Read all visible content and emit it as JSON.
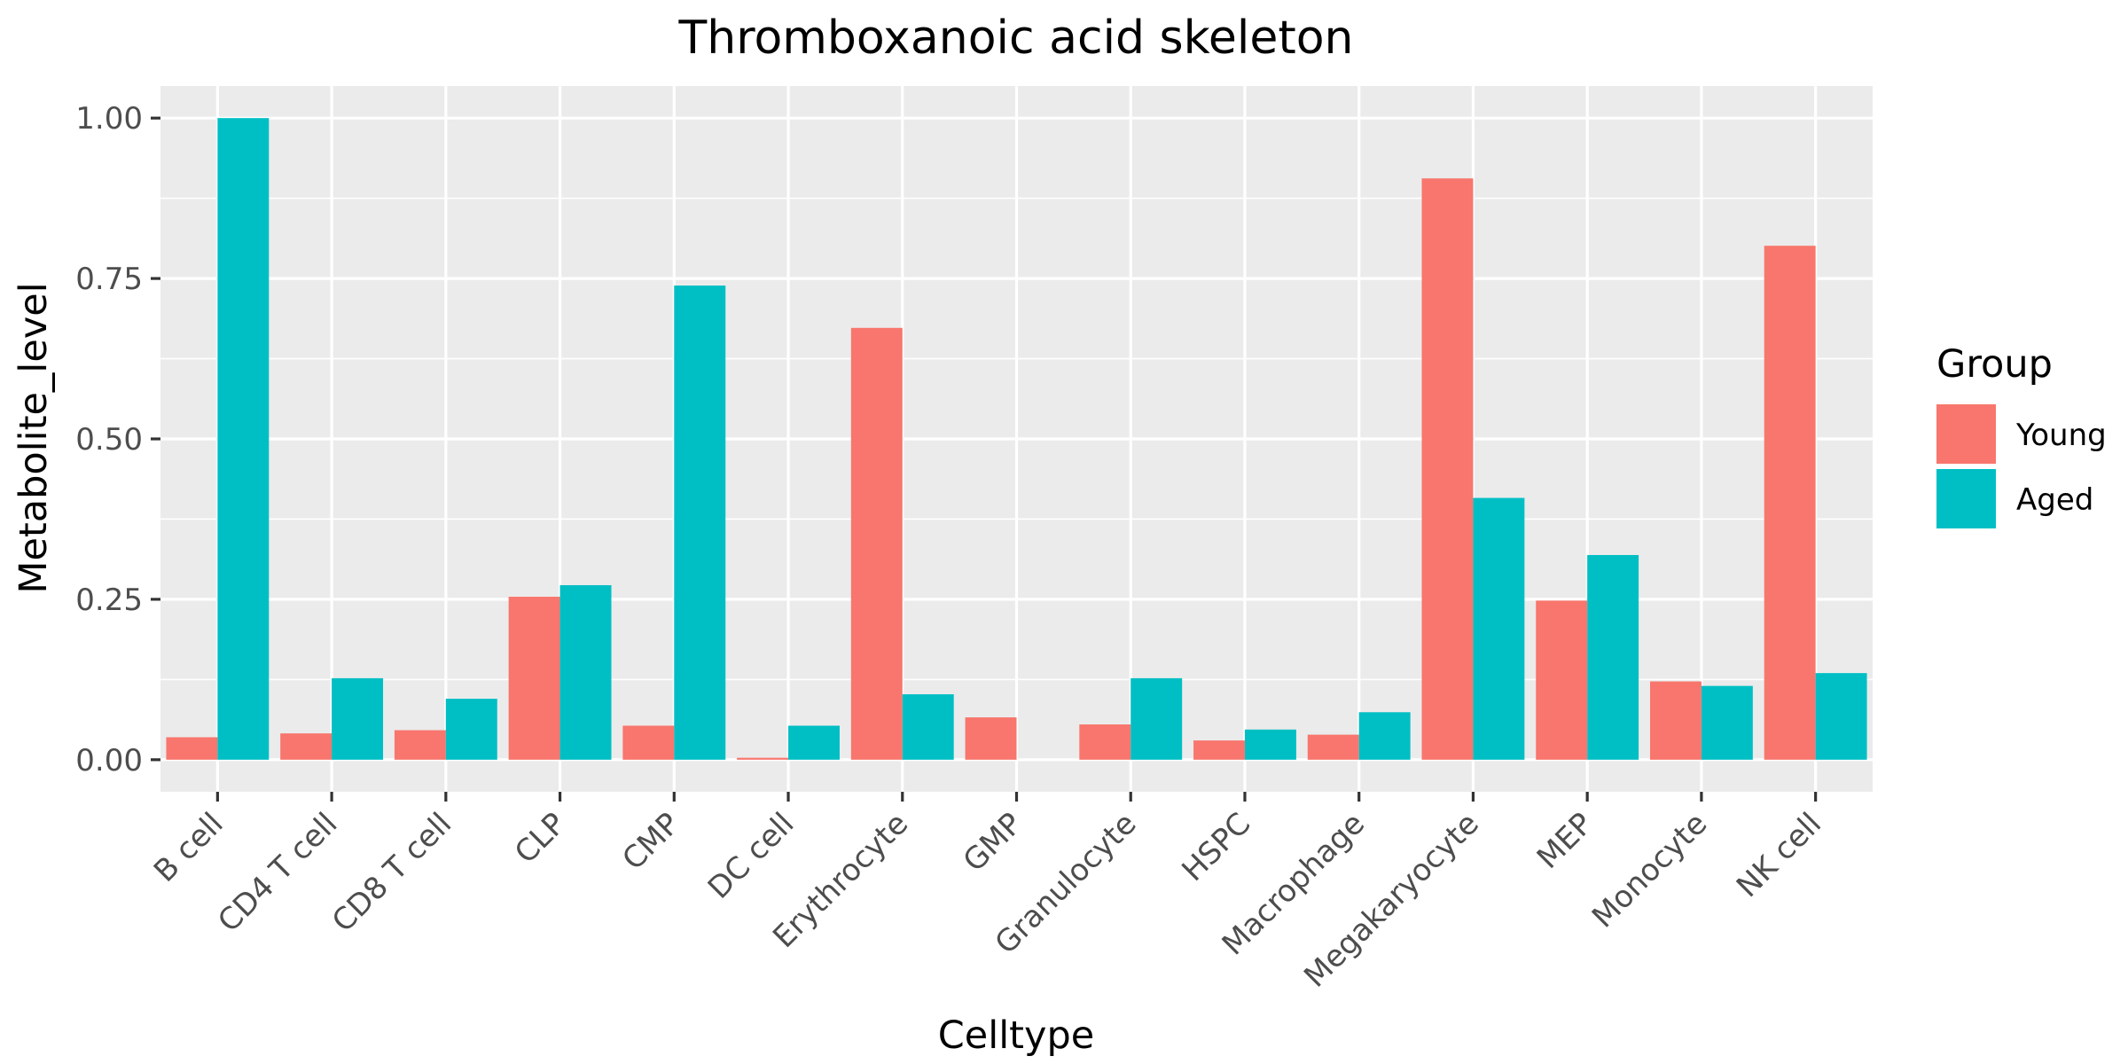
{
  "chart_data": {
    "type": "bar",
    "title": "Thromboxanoic acid skeleton",
    "xlabel": "Celltype",
    "ylabel": "Metabolite_level",
    "ylim": [
      -0.05,
      1.05
    ],
    "yticks": [
      0,
      0.25,
      0.5,
      0.75,
      1.0
    ],
    "ytick_labels": [
      "0.00",
      "0.25",
      "0.50",
      "0.75",
      "1.00"
    ],
    "grid": true,
    "legend": {
      "title": "Group",
      "position": "right"
    },
    "categories": [
      "B cell",
      "CD4 T cell",
      "CD8 T cell",
      "CLP",
      "CMP",
      "DC cell",
      "Erythrocyte",
      "GMP",
      "Granulocyte",
      "HSPC",
      "Macrophage",
      "Megakaryocyte",
      "MEP",
      "Monocyte",
      "NK cell"
    ],
    "series": [
      {
        "name": "Young",
        "color": "#F8766D",
        "values": [
          0.035,
          0.041,
          0.046,
          0.254,
          0.053,
          0.003,
          0.673,
          0.066,
          0.055,
          0.03,
          0.039,
          0.906,
          0.248,
          0.122,
          0.801
        ]
      },
      {
        "name": "Aged",
        "color": "#00BFC4",
        "values": [
          1.0,
          0.127,
          0.095,
          0.272,
          0.739,
          0.053,
          0.102,
          null,
          0.127,
          0.047,
          0.074,
          0.408,
          0.319,
          0.115,
          0.135
        ]
      }
    ]
  }
}
